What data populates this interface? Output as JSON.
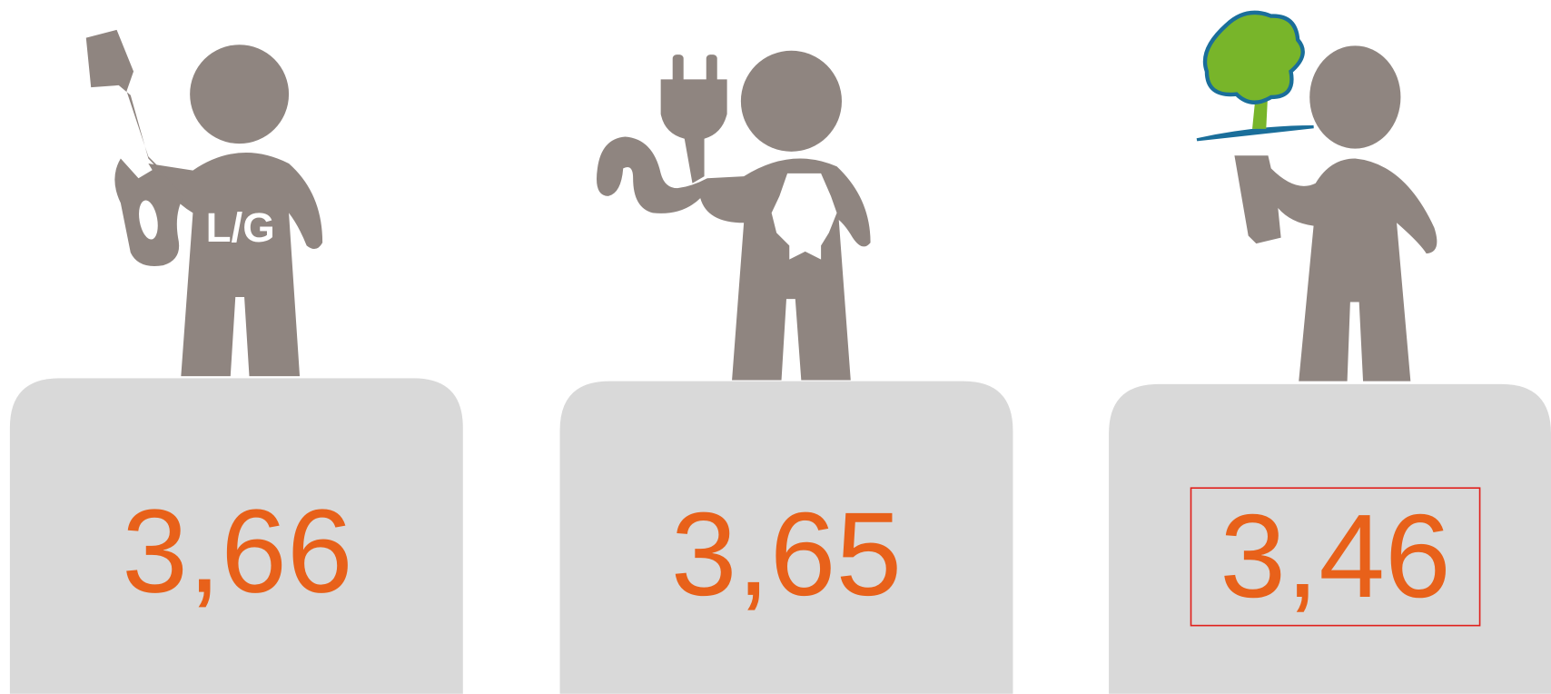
{
  "items": [
    {
      "badge": "L/G",
      "value": "3,66"
    },
    {
      "value": "3,65"
    },
    {
      "value": "3,46"
    }
  ]
}
